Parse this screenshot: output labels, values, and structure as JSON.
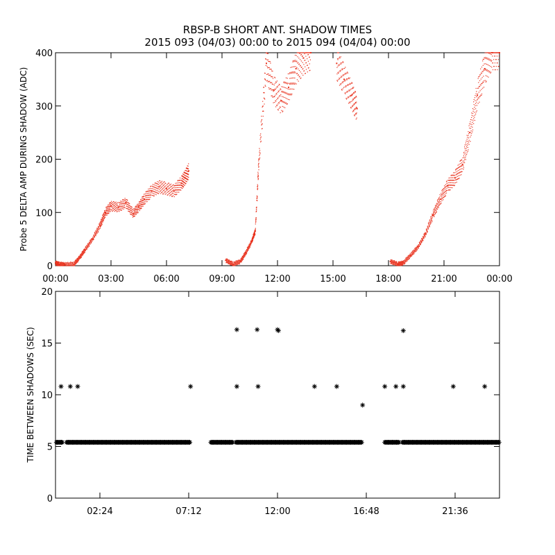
{
  "title_line1": "RBSP-B SHORT ANT. SHADOW TIMES",
  "title_line2": "2015 093 (04/03) 00:00 to 2015 094 (04/04) 00:00",
  "colors": {
    "shadow_amp": "#e8301c",
    "shadow_time": "#000000",
    "axes": "#000000"
  },
  "chart_data": [
    {
      "type": "scatter",
      "ylabel": "Probe 5 DELTA AMP DURING SHADOW (ADC)",
      "xlabel": "",
      "xlim": [
        0,
        24
      ],
      "ylim": [
        0,
        400
      ],
      "xticks": [
        0,
        3,
        6,
        9,
        12,
        15,
        18,
        21,
        24
      ],
      "xtick_labels": [
        "00:00",
        "03:00",
        "06:00",
        "09:00",
        "12:00",
        "15:00",
        "18:00",
        "21:00",
        "00:00"
      ],
      "yticks": [
        0,
        100,
        200,
        300,
        400
      ],
      "ytick_labels": [
        "0",
        "100",
        "200",
        "300",
        "400"
      ],
      "series": [
        {
          "color": "#e8301c",
          "x": [
            0.0,
            0.2,
            0.5,
            1.0,
            1.3,
            1.6,
            2.0,
            2.4,
            2.7,
            3.0,
            3.4,
            3.8,
            4.2,
            4.5,
            4.8,
            5.2,
            5.6,
            6.0,
            6.4,
            6.8,
            7.0,
            7.2,
            9.2,
            9.6,
            10.0,
            10.3,
            10.6,
            10.8,
            11.0,
            11.4,
            11.8,
            12.2,
            12.6,
            13.0,
            13.4,
            13.8,
            15.2,
            15.6,
            16.0,
            16.3,
            18.1,
            18.5,
            18.8,
            19.2,
            19.6,
            20.0,
            20.4,
            20.8,
            21.2,
            21.6,
            22.0,
            22.4,
            22.8,
            23.2,
            23.6,
            24.0
          ],
          "y": [
            5,
            3,
            2,
            3,
            15,
            30,
            50,
            75,
            100,
            112,
            110,
            118,
            98,
            110,
            125,
            140,
            148,
            145,
            140,
            155,
            165,
            178,
            10,
            3,
            8,
            25,
            45,
            65,
            200,
            380,
            330,
            310,
            335,
            370,
            390,
            400,
            380,
            350,
            320,
            295,
            8,
            3,
            5,
            20,
            35,
            60,
            95,
            125,
            150,
            165,
            190,
            250,
            320,
            370,
            400,
            400
          ]
        }
      ]
    },
    {
      "type": "scatter",
      "ylabel": "TIME BETWEEN SHADOWS (SEC)",
      "xlabel": "",
      "xlim": [
        0,
        24
      ],
      "ylim": [
        0,
        20
      ],
      "xticks": [
        2.4,
        7.2,
        12.0,
        16.8,
        21.6
      ],
      "xtick_labels": [
        "02:24",
        "07:12",
        "12:00",
        "16:48",
        "21:36"
      ],
      "yticks": [
        0,
        5,
        10,
        15,
        20
      ],
      "ytick_labels": [
        "0",
        "5",
        "10",
        "15",
        "20"
      ],
      "series": [
        {
          "marker": "asterisk",
          "color": "#000000",
          "x": [
            0.3,
            0.8,
            1.2,
            7.3,
            9.8,
            9.8,
            10.9,
            10.95,
            12.0,
            12.05,
            14.0,
            15.2,
            16.6,
            17.8,
            18.4,
            18.8,
            18.8,
            21.5,
            23.2
          ],
          "y": [
            10.8,
            10.8,
            10.8,
            10.8,
            16.3,
            10.8,
            16.3,
            10.8,
            16.3,
            16.2,
            10.8,
            10.8,
            9.0,
            10.8,
            10.8,
            16.2,
            10.8,
            10.8,
            10.8
          ]
        },
        {
          "marker": "asterisk-band",
          "color": "#000000",
          "y_value": 5.4,
          "x_ranges": [
            [
              0.05,
              0.4
            ],
            [
              0.6,
              7.3
            ],
            [
              8.4,
              9.6
            ],
            [
              9.75,
              16.55
            ],
            [
              17.8,
              18.6
            ],
            [
              18.75,
              24.0
            ]
          ]
        }
      ]
    }
  ]
}
